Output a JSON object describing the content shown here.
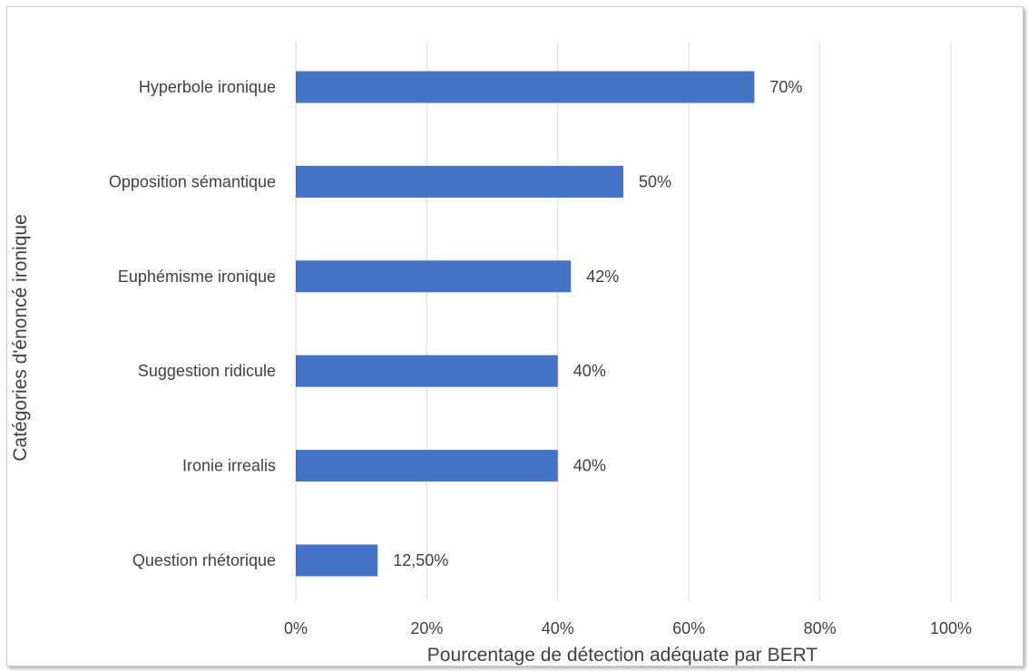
{
  "chart_data": {
    "type": "bar",
    "orientation": "horizontal",
    "categories": [
      "Hyperbole ironique",
      "Opposition sémantique",
      "Euphémisme ironique",
      "Suggestion ridicule",
      "Ironie irrealis",
      "Question rhétorique"
    ],
    "values": [
      70,
      50,
      42,
      40,
      40,
      12.5
    ],
    "data_labels": [
      "70%",
      "50%",
      "42%",
      "40%",
      "40%",
      "12,50%"
    ],
    "title": "",
    "xlabel": "Pourcentage de détection adéquate par BERT",
    "ylabel": "Catégories d'énoncé ironique",
    "xlim": [
      0,
      100
    ],
    "x_ticks": [
      0,
      20,
      40,
      60,
      80,
      100
    ],
    "x_tick_labels": [
      "0%",
      "20%",
      "40%",
      "60%",
      "80%",
      "100%"
    ],
    "grid": "vertical",
    "legend": "none",
    "bar_color": "#4472C4",
    "grid_color": "#D9D9D9"
  }
}
